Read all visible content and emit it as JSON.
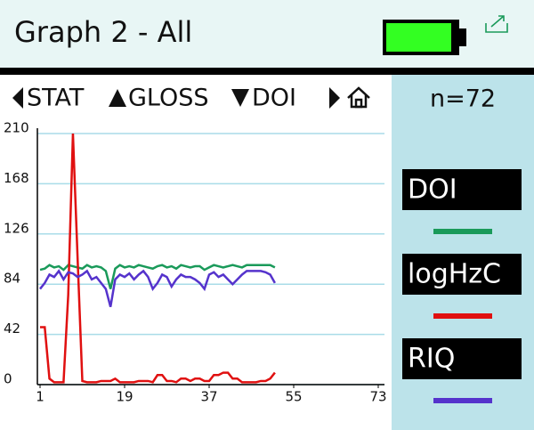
{
  "header": {
    "title": "Graph 2 - All"
  },
  "nav": [
    "STAT",
    "GLOSS",
    "DOI"
  ],
  "panel": {
    "count": "n=72"
  },
  "chart_data": {
    "type": "line",
    "x": [
      1,
      2,
      3,
      4,
      5,
      6,
      7,
      8,
      9,
      10,
      11,
      12,
      13,
      14,
      15,
      16,
      17,
      18,
      19,
      20,
      21,
      22,
      23,
      24,
      25,
      26,
      27,
      28,
      29,
      30,
      31,
      32,
      33,
      34,
      35,
      36,
      37,
      38,
      39,
      40,
      41,
      42,
      43,
      44,
      45,
      46,
      47,
      48,
      49,
      50,
      51
    ],
    "xlim": [
      1,
      73
    ],
    "xticks": [
      1,
      19,
      37,
      55,
      73
    ],
    "ylim": [
      0,
      210
    ],
    "yticks": [
      0,
      42,
      84,
      126,
      168,
      210
    ],
    "grid": true,
    "series": [
      {
        "name": "DOI",
        "color": "#1a9a5a",
        "values": [
          96,
          97,
          100,
          98,
          99,
          96,
          100,
          99,
          98,
          97,
          100,
          98,
          99,
          98,
          95,
          80,
          97,
          100,
          98,
          99,
          98,
          100,
          99,
          98,
          97,
          99,
          100,
          98,
          99,
          97,
          100,
          99,
          98,
          99,
          99,
          96,
          98,
          100,
          99,
          98,
          99,
          100,
          99,
          98,
          100,
          100,
          100,
          100,
          100,
          100,
          98
        ]
      },
      {
        "name": "logHzC",
        "color": "#e01010",
        "values": [
          48,
          48,
          5,
          2,
          2,
          2,
          75,
          210,
          105,
          3,
          2,
          2,
          2,
          3,
          3,
          3,
          5,
          2,
          2,
          2,
          2,
          3,
          3,
          3,
          2,
          8,
          8,
          3,
          3,
          2,
          5,
          5,
          3,
          5,
          5,
          3,
          3,
          8,
          8,
          10,
          10,
          5,
          5,
          2,
          2,
          2,
          2,
          3,
          3,
          5,
          10
        ]
      },
      {
        "name": "RIQ",
        "color": "#5533cc",
        "values": [
          80,
          85,
          92,
          90,
          95,
          88,
          94,
          93,
          90,
          92,
          95,
          88,
          90,
          85,
          80,
          65,
          88,
          92,
          90,
          93,
          88,
          92,
          95,
          90,
          80,
          85,
          92,
          90,
          82,
          88,
          92,
          90,
          90,
          88,
          85,
          80,
          92,
          94,
          90,
          92,
          88,
          84,
          88,
          92,
          95,
          95,
          95,
          95,
          94,
          92,
          85
        ]
      }
    ]
  }
}
